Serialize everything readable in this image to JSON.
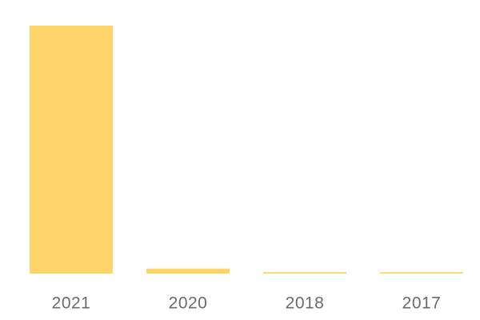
{
  "chart_data": {
    "type": "bar",
    "categories": [
      "2021",
      "2020",
      "2018",
      "2017"
    ],
    "values": [
      100,
      2,
      0.6,
      0.6
    ],
    "color": "#fdd56a"
  }
}
